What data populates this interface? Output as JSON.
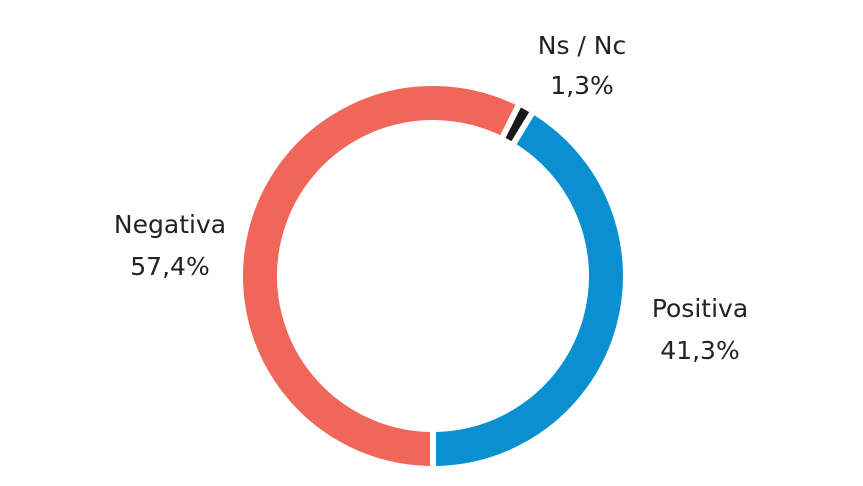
{
  "chart_data": {
    "type": "donut",
    "categories": [
      "Negativa",
      "Ns / Nc",
      "Positiva"
    ],
    "values": [
      57.4,
      1.3,
      41.3
    ],
    "value_labels": [
      "57,4%",
      "1,3%",
      "41,3%"
    ],
    "colors": [
      "#f0675a",
      "#1a1a1a",
      "#0a8fd0"
    ]
  }
}
